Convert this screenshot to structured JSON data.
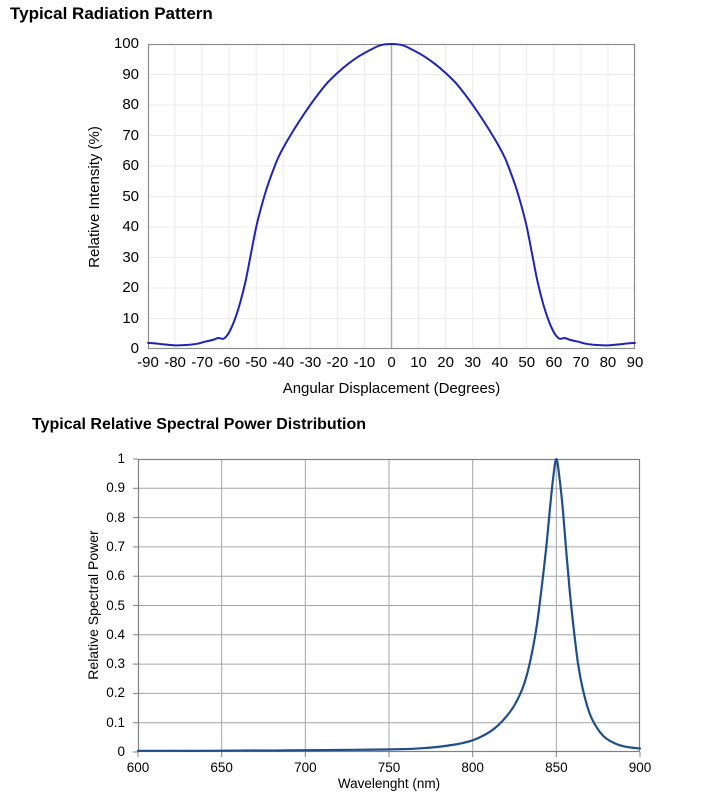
{
  "page_background": "#ffffff",
  "chart_data": [
    {
      "type": "line",
      "title": "Typical Radiation Pattern",
      "xlabel": "Angular Displacement (Degrees)",
      "ylabel": "Relative Intensity (%)",
      "xlim": [
        -90,
        90
      ],
      "ylim": [
        0,
        100
      ],
      "grid": true,
      "legend": false,
      "xticks": {
        "values": [
          -90,
          -80,
          -70,
          -60,
          -50,
          -40,
          -30,
          -20,
          -10,
          0,
          10,
          20,
          30,
          40,
          50,
          60,
          70,
          80,
          90
        ],
        "labels": [
          "-90",
          "-80",
          "-70",
          "-60",
          "-50",
          "-40",
          "-30",
          "-20",
          "-10",
          "0",
          "10",
          "20",
          "30",
          "40",
          "50",
          "60",
          "70",
          "80",
          "90"
        ]
      },
      "yticks": {
        "values": [
          0,
          10,
          20,
          30,
          40,
          50,
          60,
          70,
          80,
          90,
          100
        ],
        "labels": [
          "0",
          "10",
          "20",
          "30",
          "40",
          "50",
          "60",
          "70",
          "80",
          "90",
          "100"
        ]
      },
      "line_color": "#1f24b4",
      "line_width": 2,
      "grid_color": "#ebebeb",
      "axis_color": "#8c8c8c",
      "center_line_x": 0,
      "center_line_color": "#a8a8a8",
      "outer_ticks": false,
      "series": [
        {
          "name": "Relative Intensity",
          "points": [
            [
              -90,
              2
            ],
            [
              -87,
              1.8
            ],
            [
              -84,
              1.5
            ],
            [
              -80,
              1.2
            ],
            [
              -76,
              1.3
            ],
            [
              -72,
              1.7
            ],
            [
              -69,
              2.4
            ],
            [
              -66,
              3
            ],
            [
              -64,
              3.6
            ],
            [
              -62,
              3.4
            ],
            [
              -60,
              5.5
            ],
            [
              -58,
              9.5
            ],
            [
              -56,
              15
            ],
            [
              -54,
              22
            ],
            [
              -52,
              31
            ],
            [
              -50,
              40
            ],
            [
              -48,
              47
            ],
            [
              -46,
              53
            ],
            [
              -44,
              58
            ],
            [
              -42,
              62.5
            ],
            [
              -40,
              66
            ],
            [
              -36,
              72
            ],
            [
              -32,
              77.5
            ],
            [
              -28,
              82.5
            ],
            [
              -24,
              87
            ],
            [
              -20,
              90.5
            ],
            [
              -16,
              93.5
            ],
            [
              -12,
              96
            ],
            [
              -8,
              98
            ],
            [
              -4,
              99.6
            ],
            [
              0,
              100
            ],
            [
              4,
              99.6
            ],
            [
              8,
              98
            ],
            [
              12,
              96
            ],
            [
              16,
              93.5
            ],
            [
              20,
              90.5
            ],
            [
              24,
              87
            ],
            [
              28,
              82.5
            ],
            [
              32,
              77.5
            ],
            [
              36,
              72
            ],
            [
              40,
              66
            ],
            [
              42,
              62.5
            ],
            [
              44,
              58
            ],
            [
              46,
              53
            ],
            [
              48,
              47
            ],
            [
              50,
              40
            ],
            [
              52,
              31
            ],
            [
              54,
              22
            ],
            [
              56,
              15
            ],
            [
              58,
              9.5
            ],
            [
              60,
              5.5
            ],
            [
              62,
              3.4
            ],
            [
              64,
              3.6
            ],
            [
              66,
              3
            ],
            [
              69,
              2.4
            ],
            [
              72,
              1.7
            ],
            [
              76,
              1.3
            ],
            [
              80,
              1.2
            ],
            [
              84,
              1.5
            ],
            [
              87,
              1.8
            ],
            [
              90,
              2
            ]
          ]
        }
      ]
    },
    {
      "type": "line",
      "title": "Typical Relative Spectral Power Distribution",
      "xlabel": "Wavelenght (nm)",
      "ylabel": "Relative Spectral Power",
      "xlim": [
        600,
        900
      ],
      "ylim": [
        0,
        1
      ],
      "grid": true,
      "legend": false,
      "xticks": {
        "values": [
          600,
          650,
          700,
          750,
          800,
          850,
          900
        ],
        "labels": [
          "600",
          "650",
          "700",
          "750",
          "800",
          "850",
          "900"
        ]
      },
      "yticks": {
        "values": [
          0,
          0.1,
          0.2,
          0.3,
          0.4,
          0.5,
          0.6,
          0.7,
          0.8,
          0.9,
          1
        ],
        "labels": [
          "0",
          "0.1",
          "0.2",
          "0.3",
          "0.4",
          "0.5",
          "0.6",
          "0.7",
          "0.8",
          "0.9",
          "1"
        ]
      },
      "line_color": "#1f4e8b",
      "line_width": 2.2,
      "grid_color": "#a6a6a6",
      "axis_color": "#808080",
      "center_line_x": null,
      "center_line_color": null,
      "outer_ticks": true,
      "series": [
        {
          "name": "Relative Spectral Power",
          "points": [
            [
              600,
              0.004
            ],
            [
              620,
              0.004
            ],
            [
              640,
              0.004
            ],
            [
              660,
              0.005
            ],
            [
              680,
              0.005
            ],
            [
              700,
              0.006
            ],
            [
              720,
              0.007
            ],
            [
              740,
              0.008
            ],
            [
              760,
              0.01
            ],
            [
              770,
              0.013
            ],
            [
              780,
              0.018
            ],
            [
              790,
              0.026
            ],
            [
              795,
              0.032
            ],
            [
              800,
              0.04
            ],
            [
              805,
              0.052
            ],
            [
              810,
              0.068
            ],
            [
              815,
              0.09
            ],
            [
              820,
              0.12
            ],
            [
              825,
              0.16
            ],
            [
              830,
              0.22
            ],
            [
              834,
              0.3
            ],
            [
              838,
              0.42
            ],
            [
              841,
              0.55
            ],
            [
              844,
              0.7
            ],
            [
              846,
              0.82
            ],
            [
              848,
              0.93
            ],
            [
              850,
              1.0
            ],
            [
              852,
              0.93
            ],
            [
              854,
              0.82
            ],
            [
              856,
              0.68
            ],
            [
              858,
              0.55
            ],
            [
              860,
              0.44
            ],
            [
              863,
              0.3
            ],
            [
              866,
              0.21
            ],
            [
              870,
              0.13
            ],
            [
              874,
              0.085
            ],
            [
              878,
              0.055
            ],
            [
              882,
              0.038
            ],
            [
              886,
              0.027
            ],
            [
              890,
              0.02
            ],
            [
              895,
              0.015
            ],
            [
              900,
              0.012
            ]
          ]
        }
      ]
    }
  ]
}
